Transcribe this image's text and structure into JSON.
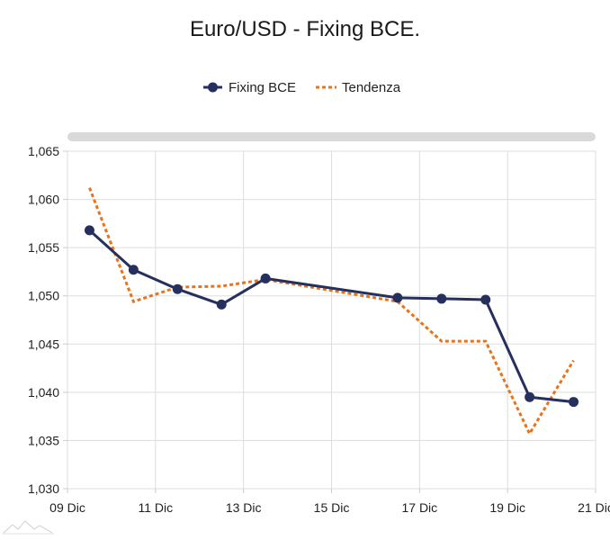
{
  "chart_data": {
    "type": "line",
    "title": "Euro/USD - Fixing BCE.",
    "xlabel": "",
    "ylabel": "",
    "ylim": [
      1.03,
      1.065
    ],
    "y_ticks": [
      1.03,
      1.035,
      1.04,
      1.045,
      1.05,
      1.055,
      1.06,
      1.065
    ],
    "y_tick_labels": [
      "1,030",
      "1,035",
      "1,040",
      "1,045",
      "1,050",
      "1,055",
      "1,060",
      "1,065"
    ],
    "x_range": [
      "2024-12-09",
      "2024-12-21"
    ],
    "x_ticks": [
      "2024-12-09",
      "2024-12-11",
      "2024-12-13",
      "2024-12-15",
      "2024-12-17",
      "2024-12-19",
      "2024-12-21"
    ],
    "x_tick_labels": [
      "09 Dic",
      "11 Dic",
      "13 Dic",
      "15 Dic",
      "17 Dic",
      "19 Dic",
      "21 Dic"
    ],
    "grid": true,
    "legend": "top",
    "series": [
      {
        "name": "Fixing BCE",
        "style": "solid-with-markers",
        "color": "#26305f",
        "x": [
          "2024-12-09 12:00",
          "2024-12-10 12:00",
          "2024-12-11 12:00",
          "2024-12-12 12:00",
          "2024-12-13 12:00",
          "2024-12-16 12:00",
          "2024-12-17 12:00",
          "2024-12-18 12:00",
          "2024-12-19 12:00",
          "2024-12-20 12:00"
        ],
        "values": [
          1.0568,
          1.0527,
          1.0507,
          1.0491,
          1.0518,
          1.0498,
          1.0497,
          1.0496,
          1.0395,
          1.039
        ]
      },
      {
        "name": "Tendenza",
        "style": "dotted",
        "color": "#e8731a",
        "x": [
          "2024-12-09 12:00",
          "2024-12-10 12:00",
          "2024-12-11 12:00",
          "2024-12-12 12:00",
          "2024-12-13 12:00",
          "2024-12-16 12:00",
          "2024-12-17 12:00",
          "2024-12-18 12:00",
          "2024-12-19 12:00",
          "2024-12-20 12:00"
        ],
        "values": [
          1.0612,
          1.0494,
          1.0509,
          1.051,
          1.0517,
          1.0494,
          1.0453,
          1.0453,
          1.0357,
          1.0433
        ]
      }
    ]
  },
  "colors": {
    "grid": "#dddddd",
    "axis": "#cccccc",
    "scrollbar": "#d9d9d9"
  },
  "icons": {
    "watermark": "mountain-logo-icon"
  }
}
